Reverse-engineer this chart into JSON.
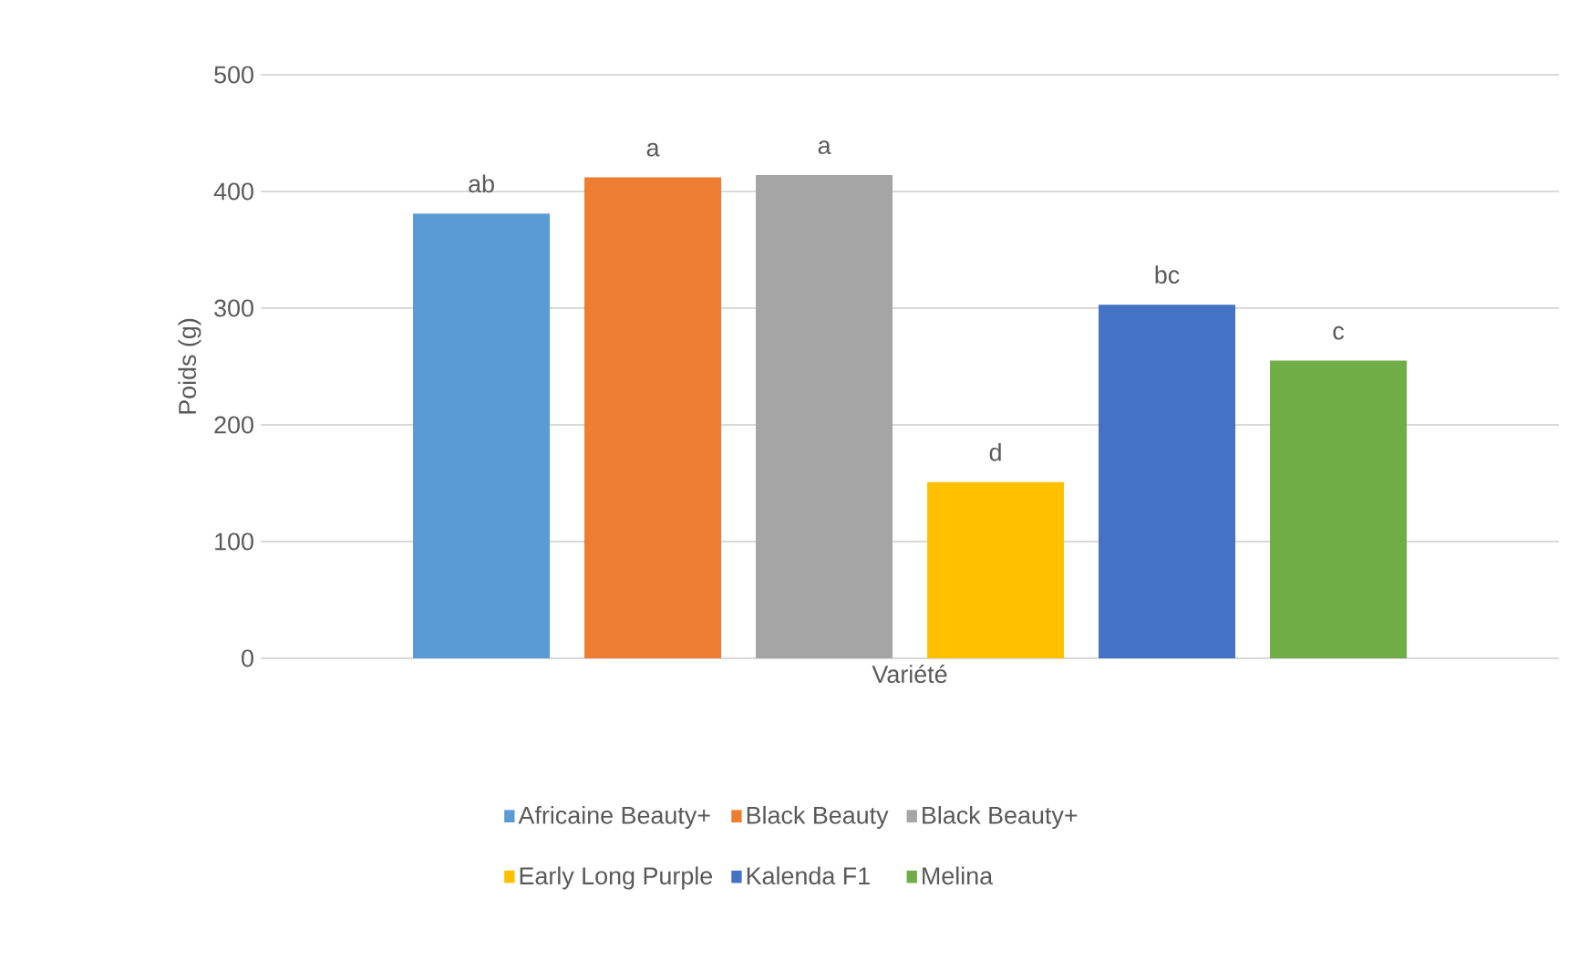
{
  "chart_data": {
    "type": "bar",
    "ylabel": "Poids (g)",
    "categories": [
      "Variété"
    ],
    "series": [
      {
        "name": "Africaine Beauty+",
        "color": "#5b9bd5",
        "values": [
          381
        ]
      },
      {
        "name": "Black Beauty",
        "color": "#ed7d31",
        "values": [
          412
        ]
      },
      {
        "name": "Black Beauty+",
        "color": "#a5a5a5",
        "values": [
          414
        ]
      },
      {
        "name": "Early Long Purple",
        "color": "#ffc000",
        "values": [
          151
        ]
      },
      {
        "name": "Kalenda F1",
        "color": "#4472c4",
        "values": [
          303
        ]
      },
      {
        "name": "Melina",
        "color": "#70ad47",
        "values": [
          255
        ]
      }
    ],
    "annotations": [
      "ab",
      "a",
      "a",
      "d",
      "bc",
      "c"
    ],
    "ylim": [
      0,
      500
    ],
    "yticks": [
      0,
      100,
      200,
      300,
      400,
      500
    ],
    "grid": "y",
    "legend": "bottom"
  }
}
